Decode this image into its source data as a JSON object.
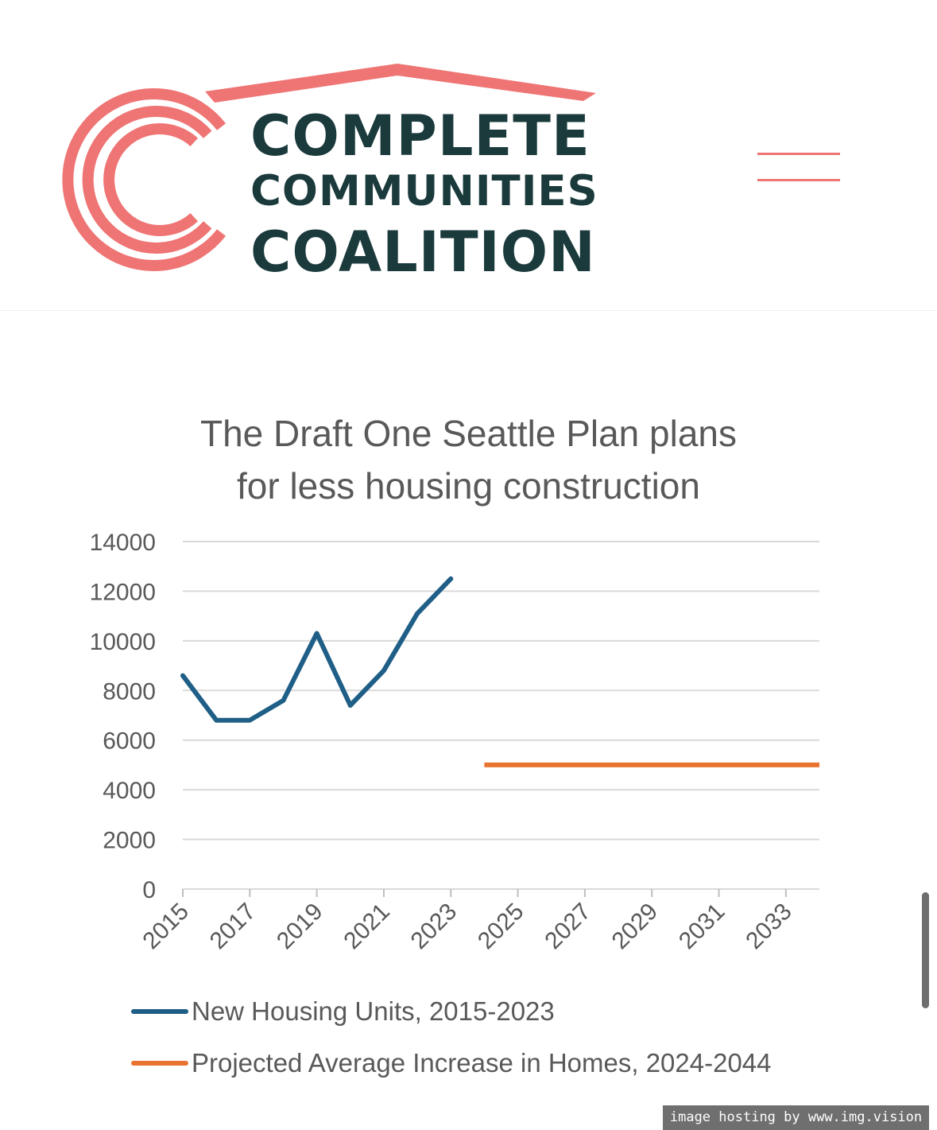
{
  "brand": {
    "line1": "COMPLETE",
    "line2": "COMMUNITIES",
    "line3": "COALITION",
    "colors": {
      "coral": "#ef7474",
      "dark": "#1b3a3c"
    }
  },
  "menu": {
    "icon": "hamburger-menu-icon"
  },
  "chart_data": {
    "type": "line",
    "title": "The Draft One Seattle Plan plans for less housing construction",
    "title_lines": [
      "The Draft One Seattle Plan plans",
      "for less housing construction"
    ],
    "xlabel": "",
    "ylabel": "",
    "x_ticks": [
      "2015",
      "2017",
      "2019",
      "2021",
      "2023",
      "2025",
      "2027",
      "2029",
      "2031",
      "2033"
    ],
    "y_ticks": [
      "0",
      "2000",
      "4000",
      "6000",
      "8000",
      "10000",
      "12000",
      "14000"
    ],
    "xlim": [
      2015,
      2034
    ],
    "ylim": [
      0,
      14000
    ],
    "grid": true,
    "legend_position": "bottom",
    "series": [
      {
        "name": "New Housing Units, 2015-2023",
        "color": "#1f5e86",
        "x": [
          2015,
          2016,
          2017,
          2018,
          2019,
          2020,
          2021,
          2022,
          2023
        ],
        "values": [
          8600,
          6800,
          6800,
          7600,
          10300,
          7400,
          8800,
          11100,
          12500
        ]
      },
      {
        "name": "Projected Average Increase in Homes, 2024-2044",
        "color": "#e8732f",
        "x": [
          2024,
          2034
        ],
        "values": [
          5000,
          5000
        ]
      }
    ]
  },
  "watermark": "image hosting by www.img.vision"
}
